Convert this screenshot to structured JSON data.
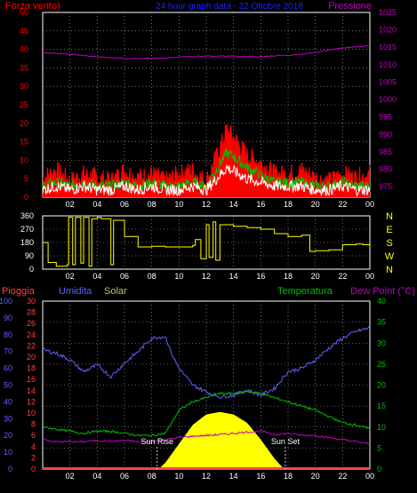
{
  "header": {
    "left_label": "Forza vento)",
    "title": "24 hour graph data - 22 Ottobre 2018",
    "right_label": "Pressione"
  },
  "colors": {
    "background": "#000000",
    "grid": "#ffffff",
    "wind_gust": "#ff0000",
    "wind_avg": "#00c000",
    "wind_speed": "#ffffff",
    "pressure": "#c000c0",
    "direction": "#ffff00",
    "humidity": "#6060ff",
    "temperature": "#00c000",
    "dewpoint": "#c000c0",
    "solar": "#ffff00",
    "rain": "#ff4040",
    "solar_label": "#c0c080",
    "direction_axis": "#ffff00"
  },
  "x_tick_labels": [
    "02",
    "04",
    "06",
    "08",
    "10",
    "12",
    "14",
    "16",
    "18",
    "20",
    "22",
    "00"
  ],
  "chart_data": [
    {
      "type": "line",
      "panel": "wind-pressure",
      "x_label": "hour",
      "x_range": [
        0,
        24
      ],
      "y_left": {
        "label": "Forza vento)",
        "ylim": [
          0,
          50
        ],
        "ticks": [
          "0",
          "5",
          "10",
          "15",
          "20",
          "25",
          "30",
          "35",
          "40",
          "45",
          "50"
        ]
      },
      "y_right": {
        "label": "Pressione",
        "ylim": [
          972,
          1025
        ],
        "ticks": [
          "975",
          "980",
          "985",
          "990",
          "995",
          "1000",
          "1005",
          "1010",
          "1015",
          "1020",
          "1025"
        ]
      },
      "grid": true,
      "series": [
        {
          "key": "gust",
          "axis": "left",
          "x": [
            0,
            1,
            2,
            3,
            4,
            5,
            6,
            7,
            8,
            9,
            10,
            11,
            12,
            13,
            13.5,
            14,
            15,
            16,
            17,
            18,
            19,
            20,
            21,
            22,
            23,
            24
          ],
          "values": [
            5,
            7,
            4,
            6,
            5,
            4,
            7,
            5,
            6,
            4,
            6,
            7,
            4,
            13,
            18,
            16,
            11,
            9,
            6,
            6,
            7,
            5,
            4,
            6,
            5,
            6
          ]
        },
        {
          "key": "avg",
          "axis": "left",
          "x": [
            0,
            1,
            2,
            3,
            4,
            5,
            6,
            7,
            8,
            9,
            10,
            11,
            12,
            13,
            13.5,
            14,
            15,
            16,
            17,
            18,
            19,
            20,
            21,
            22,
            23,
            24
          ],
          "values": [
            3,
            4,
            3,
            4,
            3,
            3,
            4,
            3,
            4,
            3,
            3,
            4,
            3,
            9,
            12,
            11,
            8,
            6,
            4,
            4,
            4,
            3,
            3,
            4,
            3,
            3
          ]
        },
        {
          "key": "speed",
          "axis": "left",
          "x": [
            0,
            1,
            2,
            3,
            4,
            5,
            6,
            7,
            8,
            9,
            10,
            11,
            12,
            13,
            13.5,
            14,
            15,
            16,
            17,
            18,
            19,
            20,
            21,
            22,
            23,
            24
          ],
          "values": [
            2,
            3,
            2,
            3,
            2,
            2,
            3,
            2,
            3,
            2,
            2,
            3,
            2,
            6,
            8,
            7,
            5,
            4,
            3,
            3,
            3,
            2,
            2,
            3,
            2,
            2
          ]
        },
        {
          "key": "pressure",
          "axis": "right",
          "x": [
            0,
            2,
            4,
            6,
            8,
            10,
            12,
            14,
            16,
            18,
            20,
            22,
            24
          ],
          "values": [
            1013.5,
            1013,
            1012.3,
            1011.8,
            1011.8,
            1012.2,
            1012.5,
            1012.4,
            1012.3,
            1012.7,
            1013.5,
            1014.8,
            1015.5
          ]
        }
      ]
    },
    {
      "type": "line",
      "panel": "wind-direction",
      "x_range": [
        0,
        24
      ],
      "y_left": {
        "ylim": [
          0,
          360
        ],
        "ticks": [
          "0",
          "90",
          "180",
          "270",
          "360"
        ]
      },
      "y_right": {
        "ticks": [
          "N",
          "W",
          "S",
          "E",
          "N"
        ]
      },
      "grid": true,
      "series": [
        {
          "key": "direction",
          "x": [
            0,
            0.4,
            1,
            1.8,
            1.9,
            2.2,
            2.4,
            2.8,
            3.0,
            3.4,
            3.6,
            4.0,
            4.3,
            5.0,
            5.2,
            6,
            7,
            8,
            9,
            10,
            11,
            11.2,
            11.6,
            12,
            12.2,
            12.5,
            12.7,
            13,
            14,
            15,
            16,
            17,
            18,
            19,
            19.6,
            20,
            21,
            22,
            23,
            23.5,
            24
          ],
          "values": [
            180,
            45,
            20,
            30,
            350,
            30,
            350,
            40,
            350,
            20,
            340,
            350,
            340,
            30,
            330,
            220,
            150,
            155,
            150,
            150,
            160,
            200,
            70,
            300,
            80,
            320,
            60,
            300,
            290,
            280,
            270,
            240,
            220,
            230,
            120,
            125,
            130,
            165,
            170,
            165,
            150
          ]
        }
      ]
    },
    {
      "type": "line",
      "panel": "temperature-humidity",
      "x_range": [
        0,
        24
      ],
      "y_axes": [
        {
          "key": "rain",
          "label": "Pioggia",
          "ylim": [
            0,
            30
          ],
          "ticks": [
            "0",
            "2",
            "4",
            "6",
            "8",
            "10",
            "12",
            "14",
            "16",
            "18",
            "20",
            "22",
            "24",
            "26",
            "28",
            "30"
          ]
        },
        {
          "key": "humidity",
          "label": "Umidita",
          "ylim": [
            0,
            100
          ],
          "ticks": [
            "0",
            "10",
            "20",
            "30",
            "40",
            "50",
            "60",
            "70",
            "80",
            "90",
            "100"
          ]
        },
        {
          "key": "temperature",
          "label": "Temperatura",
          "ylim": [
            0,
            40
          ],
          "ticks": [
            "0",
            "5",
            "10",
            "15",
            "20",
            "25",
            "30",
            "35",
            "40"
          ]
        }
      ],
      "y_right_label": "Dew Point (°C)",
      "grid": true,
      "annotations": [
        "Sun Rise",
        "Sun Set"
      ],
      "series": [
        {
          "key": "humidity",
          "axis": "humidity",
          "x": [
            0,
            1,
            2,
            3,
            4,
            5,
            6,
            7,
            8,
            9,
            9.5,
            10,
            11,
            12,
            13,
            14,
            15,
            16,
            17,
            18,
            19,
            20,
            21,
            22,
            23,
            24
          ],
          "values": [
            71,
            69,
            65,
            58,
            62,
            55,
            63,
            70,
            78,
            79,
            68,
            60,
            50,
            46,
            43,
            44,
            47,
            44,
            48,
            58,
            60,
            65,
            72,
            78,
            82,
            84
          ]
        },
        {
          "key": "temperature",
          "axis": "temperature",
          "x": [
            0,
            1,
            2,
            3,
            4,
            5,
            6,
            7,
            8,
            9,
            10,
            11,
            12,
            13,
            14,
            15,
            16,
            17,
            18,
            19,
            20,
            21,
            22,
            23,
            24
          ],
          "values": [
            10,
            9.5,
            9,
            8.5,
            9,
            9,
            8.5,
            8,
            8,
            8.5,
            14,
            16,
            17,
            18,
            18,
            18.5,
            18,
            17,
            16,
            15,
            14,
            12.5,
            11,
            10.5,
            9.5
          ]
        },
        {
          "key": "dewpoint",
          "axis": "temperature",
          "x": [
            0,
            1,
            2,
            3,
            4,
            5,
            6,
            7,
            8,
            9,
            10,
            11,
            12,
            13,
            14,
            15,
            16,
            17,
            18,
            19,
            20,
            21,
            22,
            23,
            24
          ],
          "values": [
            7,
            6.5,
            6.5,
            6.5,
            6.8,
            6.6,
            6.8,
            6.5,
            6.5,
            7,
            7.5,
            7.8,
            8,
            8.2,
            8.5,
            8.8,
            9,
            8.2,
            8.5,
            8,
            8,
            7.5,
            7,
            6.5,
            6
          ]
        },
        {
          "key": "solar",
          "axis": "temperature",
          "x": [
            8.5,
            9,
            10,
            11,
            12,
            13,
            14,
            15,
            16,
            17,
            17.7
          ],
          "values": [
            0,
            1.5,
            6,
            10.5,
            13,
            13.6,
            13,
            11,
            7,
            2.5,
            0
          ]
        },
        {
          "key": "rain",
          "axis": "rain",
          "x": [
            0,
            24
          ],
          "values": [
            0,
            0
          ]
        }
      ]
    }
  ],
  "panel3": {
    "rain_label": "Pioggia",
    "humidity_label": "Umidita",
    "solar_label": "Solar",
    "temperature_label": "Temperatura",
    "dewpoint_label": "Dew Point (°C)",
    "sunrise_label": "Sun Rise",
    "sunset_label": "Sun Set",
    "sunrise_hour": 8.4,
    "sunset_hour": 17.8
  }
}
